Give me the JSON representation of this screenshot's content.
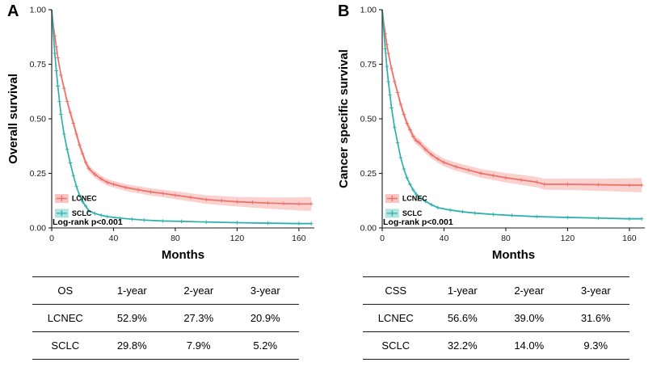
{
  "panels": [
    {
      "letter": "A",
      "ylabel": "Overall survival",
      "xlabel": "Months",
      "pvalue": "Log-rank p<0.001"
    },
    {
      "letter": "B",
      "ylabel": "Cancer specific survival",
      "xlabel": "Months",
      "pvalue": "Log-rank p<0.001"
    }
  ],
  "chart_data": [
    {
      "type": "line",
      "title": "Kaplan-Meier overall survival: LCNEC vs SCLC",
      "xlabel": "Months",
      "ylabel": "Overall survival",
      "xlim": [
        0,
        170
      ],
      "ylim": [
        0,
        1
      ],
      "xticks": [
        0,
        40,
        80,
        120,
        160
      ],
      "yticks": [
        0.0,
        0.25,
        0.5,
        0.75,
        1.0
      ],
      "ytick_labels": [
        "0.00",
        "0.25",
        "0.50",
        "0.75",
        "1.00"
      ],
      "legend_position": "bottom-left",
      "annotation": "Log-rank p<0.001",
      "series": [
        {
          "name": "LCNEC",
          "color": "#ee6f68",
          "band_color": "#f6aba6",
          "points": [
            [
              0,
              1.0,
              0.004
            ],
            [
              1,
              0.93,
              0.008
            ],
            [
              2,
              0.88,
              0.01
            ],
            [
              3,
              0.83,
              0.012
            ],
            [
              4,
              0.78,
              0.013
            ],
            [
              6,
              0.7,
              0.015
            ],
            [
              8,
              0.64,
              0.016
            ],
            [
              10,
              0.58,
              0.016
            ],
            [
              12,
              0.529,
              0.017
            ],
            [
              14,
              0.48,
              0.017
            ],
            [
              16,
              0.43,
              0.017
            ],
            [
              18,
              0.38,
              0.017
            ],
            [
              20,
              0.34,
              0.016
            ],
            [
              22,
              0.3,
              0.016
            ],
            [
              24,
              0.273,
              0.016
            ],
            [
              28,
              0.245,
              0.016
            ],
            [
              32,
              0.225,
              0.015
            ],
            [
              36,
              0.209,
              0.015
            ],
            [
              40,
              0.2,
              0.015
            ],
            [
              48,
              0.185,
              0.016
            ],
            [
              56,
              0.175,
              0.016
            ],
            [
              64,
              0.165,
              0.017
            ],
            [
              72,
              0.158,
              0.017
            ],
            [
              80,
              0.15,
              0.018
            ],
            [
              90,
              0.14,
              0.019
            ],
            [
              100,
              0.13,
              0.02
            ],
            [
              110,
              0.125,
              0.021
            ],
            [
              120,
              0.12,
              0.022
            ],
            [
              130,
              0.117,
              0.024
            ],
            [
              140,
              0.114,
              0.026
            ],
            [
              150,
              0.112,
              0.028
            ],
            [
              160,
              0.11,
              0.03
            ],
            [
              168,
              0.11,
              0.032
            ]
          ]
        },
        {
          "name": "SCLC",
          "color": "#2eb0ac",
          "band_color": "#8fd8d5",
          "points": [
            [
              0,
              1.0,
              0.002
            ],
            [
              1,
              0.9,
              0.003
            ],
            [
              2,
              0.8,
              0.004
            ],
            [
              3,
              0.72,
              0.004
            ],
            [
              4,
              0.65,
              0.005
            ],
            [
              5,
              0.58,
              0.005
            ],
            [
              6,
              0.52,
              0.005
            ],
            [
              8,
              0.43,
              0.005
            ],
            [
              10,
              0.36,
              0.005
            ],
            [
              12,
              0.298,
              0.005
            ],
            [
              14,
              0.24,
              0.005
            ],
            [
              16,
              0.19,
              0.004
            ],
            [
              18,
              0.15,
              0.004
            ],
            [
              20,
              0.12,
              0.004
            ],
            [
              22,
              0.1,
              0.003
            ],
            [
              24,
              0.079,
              0.003
            ],
            [
              28,
              0.066,
              0.003
            ],
            [
              32,
              0.058,
              0.003
            ],
            [
              36,
              0.052,
              0.003
            ],
            [
              44,
              0.045,
              0.003
            ],
            [
              52,
              0.04,
              0.003
            ],
            [
              60,
              0.036,
              0.003
            ],
            [
              72,
              0.032,
              0.003
            ],
            [
              84,
              0.03,
              0.003
            ],
            [
              100,
              0.027,
              0.003
            ],
            [
              120,
              0.024,
              0.003
            ],
            [
              140,
              0.022,
              0.004
            ],
            [
              160,
              0.02,
              0.004
            ],
            [
              168,
              0.02,
              0.004
            ]
          ]
        }
      ]
    },
    {
      "type": "line",
      "title": "Kaplan-Meier cancer specific survival: LCNEC vs SCLC",
      "xlabel": "Months",
      "ylabel": "Cancer specific survival",
      "xlim": [
        0,
        170
      ],
      "ylim": [
        0,
        1
      ],
      "xticks": [
        0,
        40,
        80,
        120,
        160
      ],
      "yticks": [
        0.0,
        0.25,
        0.5,
        0.75,
        1.0
      ],
      "ytick_labels": [
        "0.00",
        "0.25",
        "0.50",
        "0.75",
        "1.00"
      ],
      "legend_position": "bottom-left",
      "annotation": "Log-rank p<0.001",
      "series": [
        {
          "name": "LCNEC",
          "color": "#ee6f68",
          "band_color": "#f6aba6",
          "points": [
            [
              0,
              1.0,
              0.004
            ],
            [
              1,
              0.94,
              0.008
            ],
            [
              2,
              0.89,
              0.01
            ],
            [
              3,
              0.84,
              0.012
            ],
            [
              4,
              0.8,
              0.013
            ],
            [
              6,
              0.73,
              0.015
            ],
            [
              8,
              0.67,
              0.016
            ],
            [
              10,
              0.62,
              0.017
            ],
            [
              12,
              0.566,
              0.018
            ],
            [
              14,
              0.52,
              0.018
            ],
            [
              16,
              0.48,
              0.018
            ],
            [
              18,
              0.45,
              0.018
            ],
            [
              20,
              0.42,
              0.018
            ],
            [
              22,
              0.4,
              0.018
            ],
            [
              24,
              0.39,
              0.018
            ],
            [
              28,
              0.36,
              0.018
            ],
            [
              32,
              0.335,
              0.018
            ],
            [
              36,
              0.316,
              0.018
            ],
            [
              40,
              0.3,
              0.018
            ],
            [
              48,
              0.28,
              0.019
            ],
            [
              56,
              0.265,
              0.019
            ],
            [
              64,
              0.25,
              0.02
            ],
            [
              72,
              0.24,
              0.021
            ],
            [
              80,
              0.23,
              0.022
            ],
            [
              90,
              0.22,
              0.023
            ],
            [
              100,
              0.21,
              0.024
            ],
            [
              105,
              0.2,
              0.025
            ],
            [
              120,
              0.2,
              0.026
            ],
            [
              140,
              0.198,
              0.028
            ],
            [
              160,
              0.196,
              0.031
            ],
            [
              168,
              0.196,
              0.033
            ]
          ]
        },
        {
          "name": "SCLC",
          "color": "#2eb0ac",
          "band_color": "#8fd8d5",
          "points": [
            [
              0,
              1.0,
              0.002
            ],
            [
              1,
              0.91,
              0.003
            ],
            [
              2,
              0.82,
              0.004
            ],
            [
              3,
              0.74,
              0.004
            ],
            [
              4,
              0.67,
              0.005
            ],
            [
              5,
              0.61,
              0.005
            ],
            [
              6,
              0.55,
              0.005
            ],
            [
              8,
              0.46,
              0.005
            ],
            [
              10,
              0.39,
              0.005
            ],
            [
              12,
              0.322,
              0.005
            ],
            [
              14,
              0.27,
              0.005
            ],
            [
              16,
              0.23,
              0.005
            ],
            [
              18,
              0.2,
              0.005
            ],
            [
              20,
              0.175,
              0.004
            ],
            [
              22,
              0.155,
              0.004
            ],
            [
              24,
              0.14,
              0.004
            ],
            [
              28,
              0.122,
              0.004
            ],
            [
              32,
              0.106,
              0.004
            ],
            [
              36,
              0.093,
              0.004
            ],
            [
              44,
              0.082,
              0.004
            ],
            [
              52,
              0.074,
              0.004
            ],
            [
              60,
              0.068,
              0.004
            ],
            [
              72,
              0.062,
              0.004
            ],
            [
              84,
              0.057,
              0.004
            ],
            [
              100,
              0.052,
              0.004
            ],
            [
              120,
              0.048,
              0.004
            ],
            [
              140,
              0.045,
              0.004
            ],
            [
              160,
              0.042,
              0.005
            ],
            [
              168,
              0.042,
              0.005
            ]
          ]
        }
      ]
    }
  ],
  "tables": [
    {
      "header": [
        "OS",
        "1-year",
        "2-year",
        "3-year"
      ],
      "rows": [
        [
          "LCNEC",
          "52.9%",
          "27.3%",
          "20.9%"
        ],
        [
          "SCLC",
          "29.8%",
          "7.9%",
          "5.2%"
        ]
      ]
    },
    {
      "header": [
        "CSS",
        "1-year",
        "2-year",
        "3-year"
      ],
      "rows": [
        [
          "LCNEC",
          "56.6%",
          "39.0%",
          "31.6%"
        ],
        [
          "SCLC",
          "32.2%",
          "14.0%",
          "9.3%"
        ]
      ]
    }
  ]
}
